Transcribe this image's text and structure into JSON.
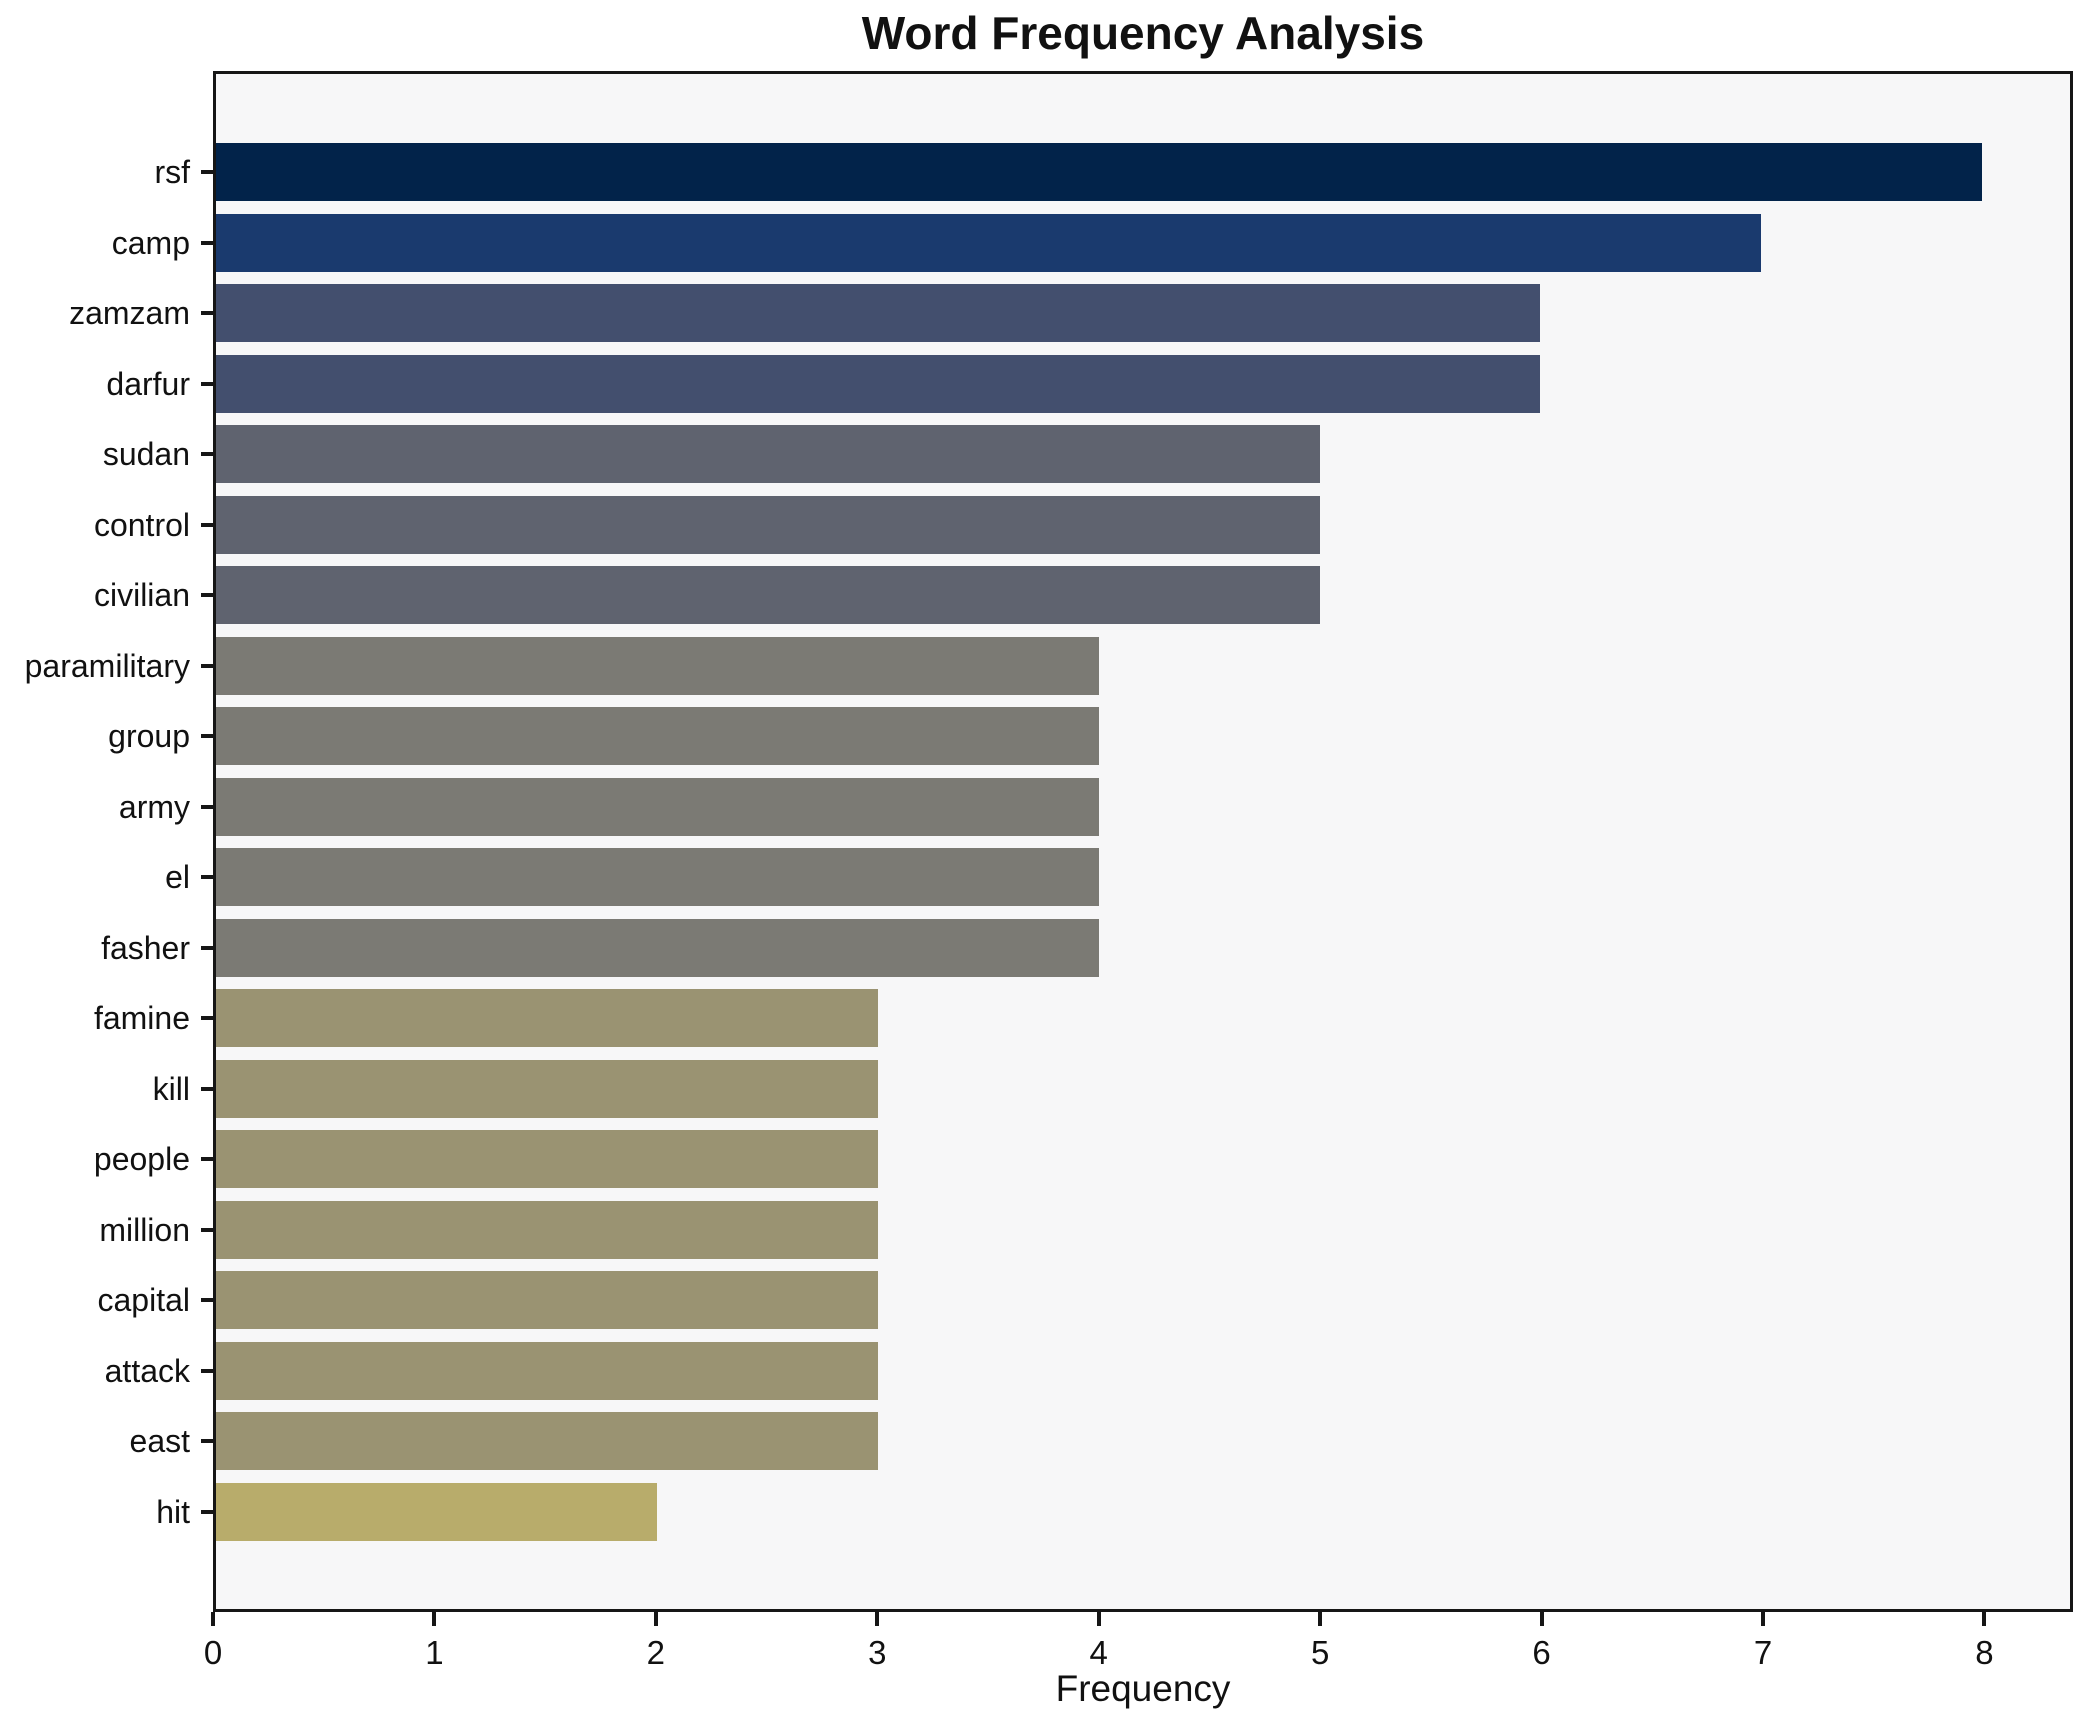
{
  "title": "Word Frequency Analysis",
  "chart_data": {
    "type": "bar",
    "orientation": "horizontal",
    "title": "Word Frequency Analysis",
    "xlabel": "Frequency",
    "ylabel": "",
    "xlim": [
      0,
      8.4
    ],
    "grid": false,
    "legend": "none",
    "x_ticks": [
      0,
      1,
      2,
      3,
      4,
      5,
      6,
      7,
      8
    ],
    "categories": [
      "rsf",
      "camp",
      "zamzam",
      "darfur",
      "sudan",
      "control",
      "civilian",
      "paramilitary",
      "group",
      "army",
      "el",
      "fasher",
      "famine",
      "kill",
      "people",
      "million",
      "capital",
      "attack",
      "east",
      "hit"
    ],
    "values": [
      8,
      7,
      6,
      6,
      5,
      5,
      5,
      4,
      4,
      4,
      4,
      4,
      3,
      3,
      3,
      3,
      3,
      3,
      3,
      2
    ],
    "bar_colors": [
      "#02234a",
      "#1a3a6e",
      "#434f6e",
      "#434f6e",
      "#5f636f",
      "#5f636f",
      "#5f636f",
      "#7b7a74",
      "#7b7a74",
      "#7b7a74",
      "#7b7a74",
      "#7b7a74",
      "#9a9372",
      "#9a9372",
      "#9a9372",
      "#9a9372",
      "#9a9372",
      "#9a9372",
      "#9a9372",
      "#b8ac6b"
    ]
  },
  "colors": {
    "figure_background": "#ffffff",
    "plot_background": "#f7f7f8",
    "spine": "#161616",
    "text": "#111111"
  }
}
